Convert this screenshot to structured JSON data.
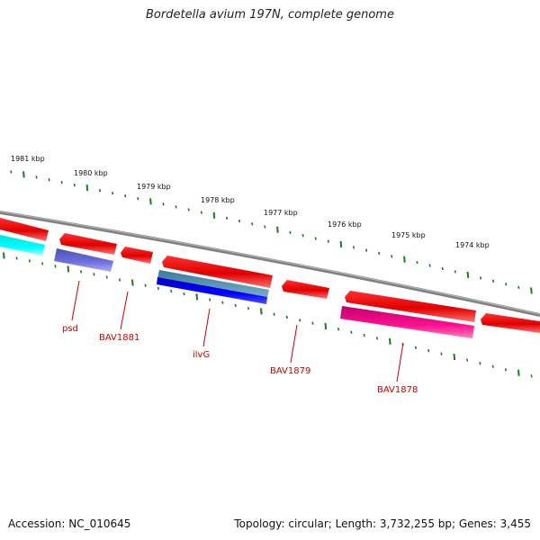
{
  "title": "Bordetella avium 197N, complete genome",
  "footer": {
    "accession": "Accession: NC_010645",
    "summary": "Topology: circular; Length: 3,732,255 bp; Genes: 3,455"
  },
  "colors": {
    "backbone": "#808080",
    "tick": "#1e7a1e",
    "forward_gene": "#ee0000",
    "label": "#cc0000"
  },
  "scale": {
    "unit": "kbp",
    "labels": [
      "1981 kbp",
      "1980 kbp",
      "1979 kbp",
      "1978 kbp",
      "1977 kbp",
      "1976 kbp",
      "1975 kbp",
      "1974 kbp"
    ]
  },
  "genes": [
    {
      "name": "psd",
      "strand": "reverse",
      "color": "#6a5acd"
    },
    {
      "name": "BAV1881",
      "strand": "forward",
      "color": "#ee0000"
    },
    {
      "name": "ilvG",
      "strand": "reverse",
      "color": "#1010e0"
    },
    {
      "name": "BAV1879",
      "strand": "forward",
      "color": "#ee0000"
    },
    {
      "name": "BAV1878",
      "strand": "reverse",
      "color": "#e0107a"
    }
  ]
}
